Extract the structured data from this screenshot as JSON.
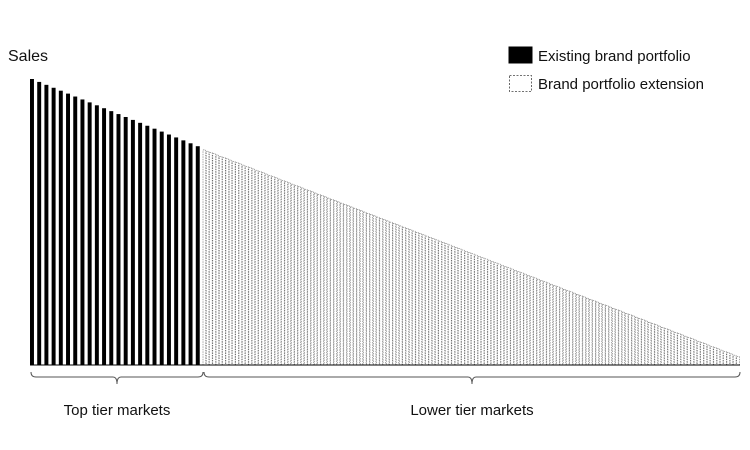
{
  "chart_data": {
    "type": "bar",
    "ylabel": "Sales",
    "legend_position": "top-right",
    "series": [
      {
        "name": "Existing brand portfolio",
        "fill": "#000000",
        "style": "solid",
        "start_value": 100,
        "end_value": 76.5,
        "bar_count": 24
      },
      {
        "name": "Brand portfolio extension",
        "fill": "#ffffff",
        "style": "dashed",
        "start_value": 75.2,
        "end_value": 3,
        "bar_count": 164
      }
    ],
    "ylim": [
      0,
      100
    ],
    "groups": [
      {
        "label": "Top tier markets",
        "series_index": 0
      },
      {
        "label": "Lower tier markets",
        "series_index": 1
      }
    ]
  }
}
